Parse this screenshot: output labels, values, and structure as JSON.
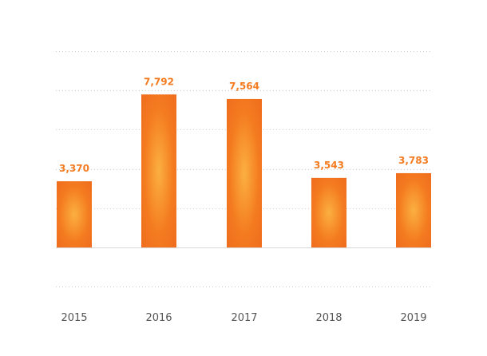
{
  "chart_data": {
    "type": "bar",
    "categories": [
      "2015",
      "2016",
      "2017",
      "2018",
      "2019"
    ],
    "values": [
      3370,
      7792,
      7564,
      3543,
      3783
    ],
    "value_labels": [
      "3,370",
      "7,792",
      "7,564",
      "3,543",
      "3,783"
    ],
    "title": "",
    "xlabel": "",
    "ylabel": "",
    "ylim": [
      -2000,
      10000
    ],
    "grid": true,
    "legend": "none"
  },
  "colors": {
    "bar": "#f47b20",
    "bar_highlight": "#fbb040",
    "bar_shadow": "#ec5a1a",
    "value_label": "#f47b20"
  }
}
